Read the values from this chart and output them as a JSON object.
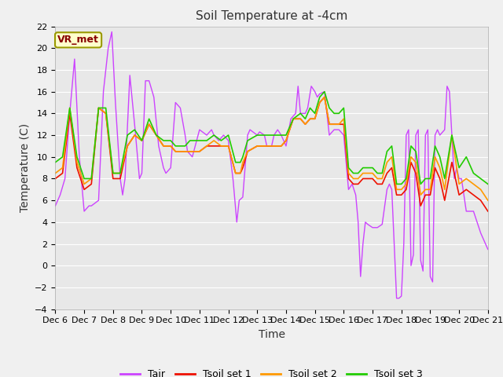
{
  "title": "Soil Temperature at -4cm",
  "xlabel": "Time",
  "ylabel": "Temperature (C)",
  "ylim": [
    -4,
    22
  ],
  "yticks": [
    -4,
    -2,
    0,
    2,
    4,
    6,
    8,
    10,
    12,
    14,
    16,
    18,
    20,
    22
  ],
  "xlim": [
    0,
    360
  ],
  "xtick_labels": [
    "Dec 6",
    "Dec 7",
    "Dec 8",
    "Dec 9",
    "Dec 10",
    "Dec 11",
    "Dec 12",
    "Dec 13",
    "Dec 14",
    "Dec 15",
    "Dec 16",
    "Dec 17",
    "Dec 18",
    "Dec 19",
    "Dec 20",
    "Dec 21"
  ],
  "xtick_positions": [
    0,
    24,
    48,
    72,
    96,
    120,
    144,
    168,
    192,
    216,
    240,
    264,
    288,
    312,
    336,
    360
  ],
  "annotation_text": "VR_met",
  "annotation_box_color": "#ffffcc",
  "annotation_box_edge": "#999900",
  "annotation_text_color": "#880000",
  "colors": {
    "Tair": "#cc44ff",
    "Tsoil1": "#ee1100",
    "Tsoil2": "#ff9900",
    "Tsoil3": "#22cc00"
  },
  "legend_labels": [
    "Tair",
    "Tsoil set 1",
    "Tsoil set 2",
    "Tsoil set 3"
  ],
  "fig_bg_color": "#f0f0f0",
  "plot_bg_color": "#e8e8e8",
  "grid_color": "#ffffff",
  "title_fontsize": 11,
  "axis_label_fontsize": 10,
  "tick_fontsize": 8
}
